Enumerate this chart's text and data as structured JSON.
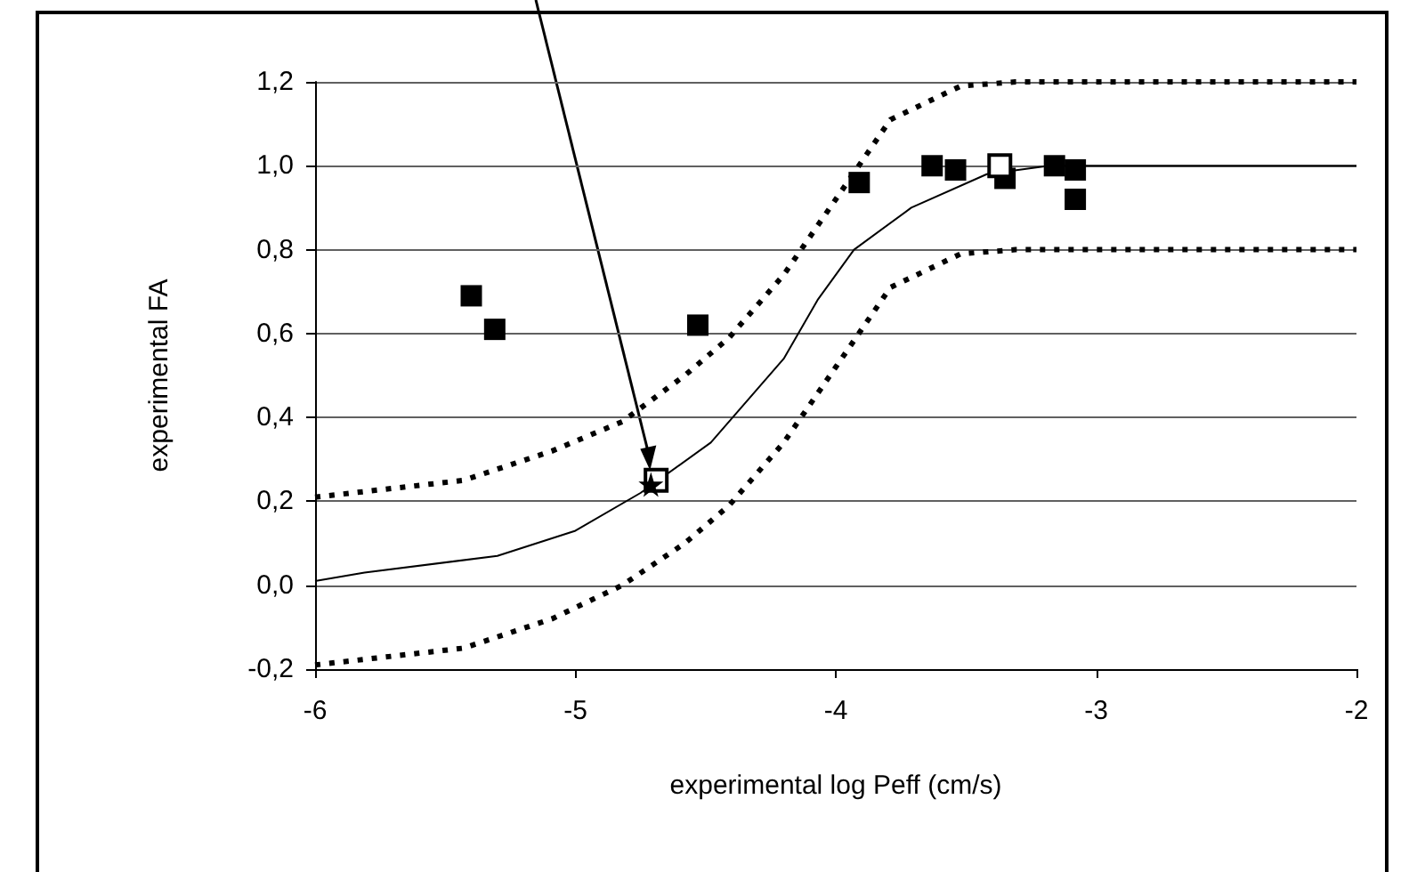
{
  "chart_data": {
    "type": "scatter",
    "xlabel": "experimental log Peff (cm/s)",
    "ylabel": "experimental FA",
    "xlim": [
      -6,
      -2
    ],
    "xticks": [
      -6,
      -5,
      -4,
      -3,
      -2
    ],
    "ylim": [
      -0.2,
      1.2
    ],
    "yticks": [
      {
        "value": -0.2,
        "label": "-0,2"
      },
      {
        "value": 0,
        "label": "0,0"
      },
      {
        "value": 0.2,
        "label": "0,2"
      },
      {
        "value": 0.4,
        "label": "0,4"
      },
      {
        "value": 0.6,
        "label": "0,6"
      },
      {
        "value": 0.8,
        "label": "0,8"
      },
      {
        "value": 1.0,
        "label": "1,0"
      },
      {
        "value": 1.2,
        "label": "1,2"
      }
    ],
    "grid": "y",
    "series": [
      {
        "type": "line",
        "line_style": "solid",
        "marker": "none",
        "color": "#000000",
        "x": [
          -6,
          -5.81,
          -5.3,
          -5.0,
          -4.75,
          -4.48,
          -4.2,
          -4.07,
          -3.93,
          -3.71,
          -3.42,
          -3.18,
          -2
        ],
        "values": [
          0.01,
          0.03,
          0.07,
          0.13,
          0.22,
          0.34,
          0.54,
          0.68,
          0.8,
          0.9,
          0.98,
          1.0,
          1.0
        ]
      },
      {
        "type": "line",
        "line_style": "dotted",
        "marker": "none",
        "color": "#000000",
        "x": [
          -6,
          -5.43,
          -5.09,
          -4.82,
          -4.58,
          -4.41,
          -4.2,
          -4.0,
          -3.79,
          -3.52,
          -3.31,
          -2
        ],
        "values": [
          0.21,
          0.25,
          0.32,
          0.39,
          0.5,
          0.59,
          0.74,
          0.92,
          1.11,
          1.19,
          1.2,
          1.2
        ]
      },
      {
        "type": "line",
        "line_style": "dotted",
        "marker": "none",
        "color": "#000000",
        "x": [
          -6,
          -5.43,
          -5.09,
          -4.82,
          -4.58,
          -4.41,
          -4.2,
          -4.0,
          -3.79,
          -3.52,
          -3.31,
          -2
        ],
        "values": [
          -0.19,
          -0.15,
          -0.08,
          0.0,
          0.1,
          0.19,
          0.34,
          0.52,
          0.71,
          0.79,
          0.8,
          0.8
        ]
      },
      {
        "marker": "square",
        "color": "#000000",
        "x": [
          -5.4,
          -5.31,
          -4.53,
          -3.91,
          -3.63,
          -3.54,
          -3.35,
          -3.16,
          -3.08,
          -3.08
        ],
        "values": [
          0.69,
          0.61,
          0.62,
          0.96,
          1.0,
          0.99,
          0.97,
          1.0,
          0.99,
          0.92
        ]
      },
      {
        "marker": "square",
        "color": "#ffffff",
        "x": [
          -4.69,
          -3.37
        ],
        "values": [
          0.25,
          1.0
        ]
      },
      {
        "marker": "star",
        "color": "#000000",
        "x": [
          -4.71
        ],
        "values": [
          0.24
        ]
      }
    ]
  }
}
